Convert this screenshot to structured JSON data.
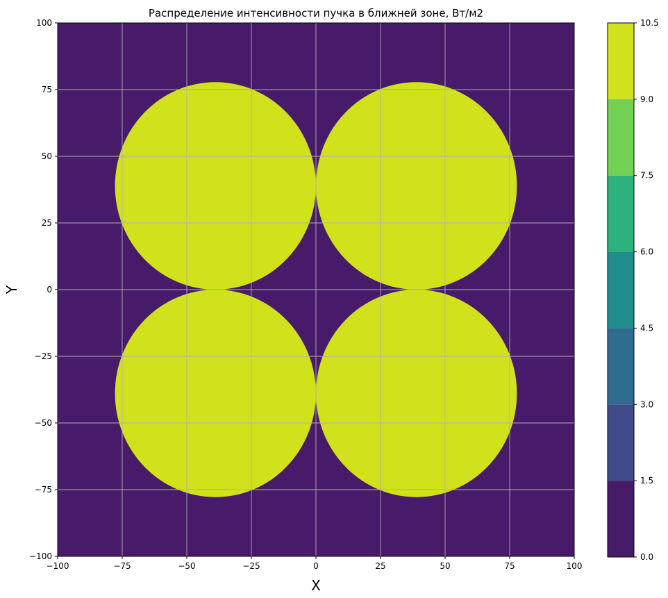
{
  "chart_data": {
    "type": "heatmap",
    "title": "Распределение интенсивности пучка в ближней зоне, Вт/м2",
    "xlabel": "X",
    "ylabel": "Y",
    "xlim": [
      -100,
      100
    ],
    "ylim": [
      -100,
      100
    ],
    "xticks": [
      -100,
      -75,
      -50,
      -25,
      0,
      25,
      50,
      75,
      100
    ],
    "yticks": [
      -100,
      -75,
      -50,
      -25,
      0,
      25,
      50,
      75,
      100
    ],
    "xtick_labels": [
      "−100",
      "−75",
      "−50",
      "−25",
      "0",
      "25",
      "50",
      "75",
      "100"
    ],
    "ytick_labels": [
      "−100",
      "−75",
      "−50",
      "−25",
      "0",
      "25",
      "50",
      "75",
      "100"
    ],
    "grid": true,
    "background_level": [
      0.0,
      1.5
    ],
    "beams": [
      {
        "cx": -38.9,
        "cy": 38.9,
        "r": 38.9,
        "level": [
          9.0,
          10.5
        ]
      },
      {
        "cx": 38.9,
        "cy": 38.9,
        "r": 38.9,
        "level": [
          9.0,
          10.5
        ]
      },
      {
        "cx": -38.9,
        "cy": -38.9,
        "r": 38.9,
        "level": [
          9.0,
          10.5
        ]
      },
      {
        "cx": 38.9,
        "cy": -38.9,
        "r": 38.9,
        "level": [
          9.0,
          10.5
        ]
      }
    ],
    "colorbar": {
      "levels": [
        0.0,
        1.5,
        3.0,
        4.5,
        6.0,
        7.5,
        9.0,
        10.5
      ],
      "labels": [
        "0.0",
        "1.5",
        "3.0",
        "4.5",
        "6.0",
        "7.5",
        "9.0",
        "10.5"
      ],
      "colors": [
        "#471a6a",
        "#3f4a8a",
        "#2f6c8e",
        "#218e8d",
        "#2db27d",
        "#73d055",
        "#d1e11c"
      ]
    }
  }
}
